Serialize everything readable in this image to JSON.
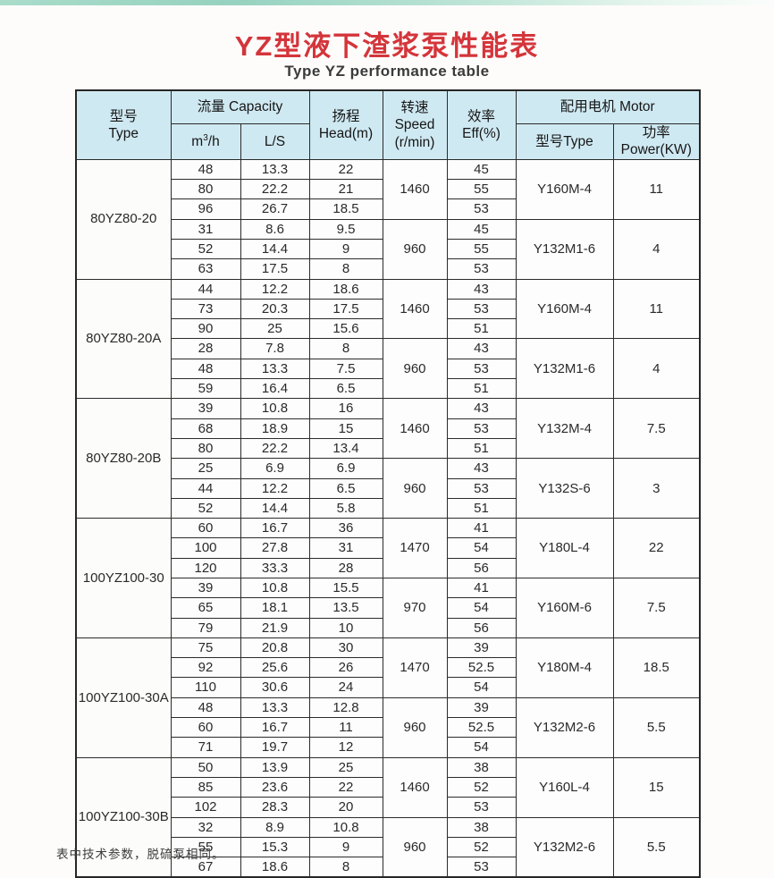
{
  "page": {
    "title": "YZ型液下渣浆泵性能表",
    "subtitle": "Type YZ performance table",
    "footnote": "表中技术参数，脱硫泵相同。",
    "title_color": "#d4353b",
    "header_bg": "#cfe9f2",
    "top_strip_color": "#9ed6c3"
  },
  "table": {
    "headers": {
      "model_zh": "型号",
      "model_en": "Type",
      "capacity": "流量 Capacity",
      "m3h_base": "m",
      "m3h_sup": "3",
      "m3h_unit": "/h",
      "ls": "L/S",
      "head_zh": "扬程",
      "head_en": "Head(m)",
      "speed_zh": "转速",
      "speed_en": "Speed",
      "speed_unit": "(r/min)",
      "eff_zh": "效率",
      "eff_en": "Eff(%)",
      "motor": "配用电机 Motor",
      "motor_type": "型号Type",
      "motor_power": "功率Power(KW)"
    },
    "groups": [
      {
        "model": "80YZ80-20",
        "subgroups": [
          {
            "speed": "1460",
            "motor": "Y160M-4",
            "power": "11",
            "rows": [
              [
                "48",
                "13.3",
                "22",
                "45"
              ],
              [
                "80",
                "22.2",
                "21",
                "55"
              ],
              [
                "96",
                "26.7",
                "18.5",
                "53"
              ]
            ]
          },
          {
            "speed": "960",
            "motor": "Y132M1-6",
            "power": "4",
            "rows": [
              [
                "31",
                "8.6",
                "9.5",
                "45"
              ],
              [
                "52",
                "14.4",
                "9",
                "55"
              ],
              [
                "63",
                "17.5",
                "8",
                "53"
              ]
            ]
          }
        ]
      },
      {
        "model": "80YZ80-20A",
        "subgroups": [
          {
            "speed": "1460",
            "motor": "Y160M-4",
            "power": "11",
            "rows": [
              [
                "44",
                "12.2",
                "18.6",
                "43"
              ],
              [
                "73",
                "20.3",
                "17.5",
                "53"
              ],
              [
                "90",
                "25",
                "15.6",
                "51"
              ]
            ]
          },
          {
            "speed": "960",
            "motor": "Y132M1-6",
            "power": "4",
            "rows": [
              [
                "28",
                "7.8",
                "8",
                "43"
              ],
              [
                "48",
                "13.3",
                "7.5",
                "53"
              ],
              [
                "59",
                "16.4",
                "6.5",
                "51"
              ]
            ]
          }
        ]
      },
      {
        "model": "80YZ80-20B",
        "subgroups": [
          {
            "speed": "1460",
            "motor": "Y132M-4",
            "power": "7.5",
            "rows": [
              [
                "39",
                "10.8",
                "16",
                "43"
              ],
              [
                "68",
                "18.9",
                "15",
                "53"
              ],
              [
                "80",
                "22.2",
                "13.4",
                "51"
              ]
            ]
          },
          {
            "speed": "960",
            "motor": "Y132S-6",
            "power": "3",
            "rows": [
              [
                "25",
                "6.9",
                "6.9",
                "43"
              ],
              [
                "44",
                "12.2",
                "6.5",
                "53"
              ],
              [
                "52",
                "14.4",
                "5.8",
                "51"
              ]
            ]
          }
        ]
      },
      {
        "model": "100YZ100-30",
        "subgroups": [
          {
            "speed": "1470",
            "motor": "Y180L-4",
            "power": "22",
            "rows": [
              [
                "60",
                "16.7",
                "36",
                "41"
              ],
              [
                "100",
                "27.8",
                "31",
                "54"
              ],
              [
                "120",
                "33.3",
                "28",
                "56"
              ]
            ]
          },
          {
            "speed": "970",
            "motor": "Y160M-6",
            "power": "7.5",
            "rows": [
              [
                "39",
                "10.8",
                "15.5",
                "41"
              ],
              [
                "65",
                "18.1",
                "13.5",
                "54"
              ],
              [
                "79",
                "21.9",
                "10",
                "56"
              ]
            ]
          }
        ]
      },
      {
        "model": "100YZ100-30A",
        "subgroups": [
          {
            "speed": "1470",
            "motor": "Y180M-4",
            "power": "18.5",
            "rows": [
              [
                "75",
                "20.8",
                "30",
                "39"
              ],
              [
                "92",
                "25.6",
                "26",
                "52.5"
              ],
              [
                "110",
                "30.6",
                "24",
                "54"
              ]
            ]
          },
          {
            "speed": "960",
            "motor": "Y132M2-6",
            "power": "5.5",
            "rows": [
              [
                "48",
                "13.3",
                "12.8",
                "39"
              ],
              [
                "60",
                "16.7",
                "11",
                "52.5"
              ],
              [
                "71",
                "19.7",
                "12",
                "54"
              ]
            ]
          }
        ]
      },
      {
        "model": "100YZ100-30B",
        "subgroups": [
          {
            "speed": "1460",
            "motor": "Y160L-4",
            "power": "15",
            "rows": [
              [
                "50",
                "13.9",
                "25",
                "38"
              ],
              [
                "85",
                "23.6",
                "22",
                "52"
              ],
              [
                "102",
                "28.3",
                "20",
                "53"
              ]
            ]
          },
          {
            "speed": "960",
            "motor": "Y132M2-6",
            "power": "5.5",
            "rows": [
              [
                "32",
                "8.9",
                "10.8",
                "38"
              ],
              [
                "55",
                "15.3",
                "9",
                "52"
              ],
              [
                "67",
                "18.6",
                "8",
                "53"
              ]
            ]
          }
        ]
      }
    ]
  }
}
